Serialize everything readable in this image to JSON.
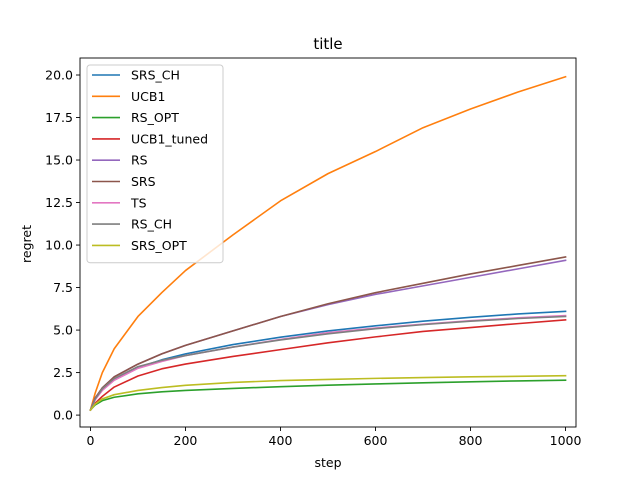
{
  "chart_data": {
    "type": "line",
    "title": "title",
    "xlabel": "step",
    "ylabel": "regret",
    "xlim": [
      -22,
      1022
    ],
    "ylim": [
      -0.7,
      21.0
    ],
    "xticks": [
      0,
      200,
      400,
      600,
      800,
      1000
    ],
    "xtick_labels": [
      "0",
      "200",
      "400",
      "600",
      "800",
      "1000"
    ],
    "yticks": [
      0.0,
      2.5,
      5.0,
      7.5,
      10.0,
      12.5,
      15.0,
      17.5,
      20.0
    ],
    "ytick_labels": [
      "0.0",
      "2.5",
      "5.0",
      "7.5",
      "10.0",
      "12.5",
      "15.0",
      "17.5",
      "20.0"
    ],
    "grid": false,
    "legend_position": "top-left",
    "x": [
      0,
      10,
      25,
      50,
      100,
      150,
      200,
      300,
      400,
      500,
      600,
      700,
      800,
      900,
      1000
    ],
    "series": [
      {
        "name": "SRS_CH",
        "color": "#1f77b4",
        "values": [
          0.3,
          0.95,
          1.5,
          2.1,
          2.8,
          3.25,
          3.6,
          4.15,
          4.58,
          4.95,
          5.25,
          5.52,
          5.75,
          5.95,
          6.1
        ]
      },
      {
        "name": "UCB1",
        "color": "#ff7f0e",
        "values": [
          0.3,
          1.3,
          2.5,
          3.9,
          5.8,
          7.2,
          8.5,
          10.6,
          12.6,
          14.2,
          15.5,
          16.9,
          18.0,
          19.0,
          19.9
        ]
      },
      {
        "name": "RS_OPT",
        "color": "#2ca02c",
        "values": [
          0.3,
          0.6,
          0.85,
          1.05,
          1.25,
          1.37,
          1.45,
          1.57,
          1.67,
          1.76,
          1.83,
          1.9,
          1.96,
          2.01,
          2.05
        ]
      },
      {
        "name": "UCB1_tuned",
        "color": "#d62728",
        "values": [
          0.3,
          0.7,
          1.1,
          1.65,
          2.3,
          2.72,
          3.0,
          3.45,
          3.85,
          4.25,
          4.6,
          4.92,
          5.15,
          5.38,
          5.6
        ]
      },
      {
        "name": "RS",
        "color": "#9467bd",
        "values": [
          0.3,
          1.0,
          1.6,
          2.25,
          3.0,
          3.6,
          4.1,
          4.95,
          5.8,
          6.5,
          7.1,
          7.6,
          8.1,
          8.6,
          9.1
        ]
      },
      {
        "name": "SRS",
        "color": "#8c564b",
        "values": [
          0.3,
          1.0,
          1.6,
          2.25,
          3.0,
          3.6,
          4.1,
          4.95,
          5.8,
          6.55,
          7.2,
          7.75,
          8.3,
          8.8,
          9.3
        ]
      },
      {
        "name": "TS",
        "color": "#e377c2",
        "values": [
          0.3,
          0.9,
          1.45,
          2.05,
          2.75,
          3.15,
          3.5,
          4.0,
          4.45,
          4.85,
          5.12,
          5.35,
          5.55,
          5.72,
          5.85
        ]
      },
      {
        "name": "RS_CH",
        "color": "#7f7f7f",
        "values": [
          0.3,
          0.95,
          1.55,
          2.15,
          2.85,
          3.22,
          3.5,
          4.0,
          4.42,
          4.78,
          5.08,
          5.32,
          5.52,
          5.68,
          5.8
        ]
      },
      {
        "name": "SRS_OPT",
        "color": "#bcbd22",
        "values": [
          0.3,
          0.65,
          0.95,
          1.2,
          1.45,
          1.62,
          1.75,
          1.92,
          2.03,
          2.1,
          2.16,
          2.21,
          2.25,
          2.28,
          2.32
        ]
      }
    ]
  }
}
